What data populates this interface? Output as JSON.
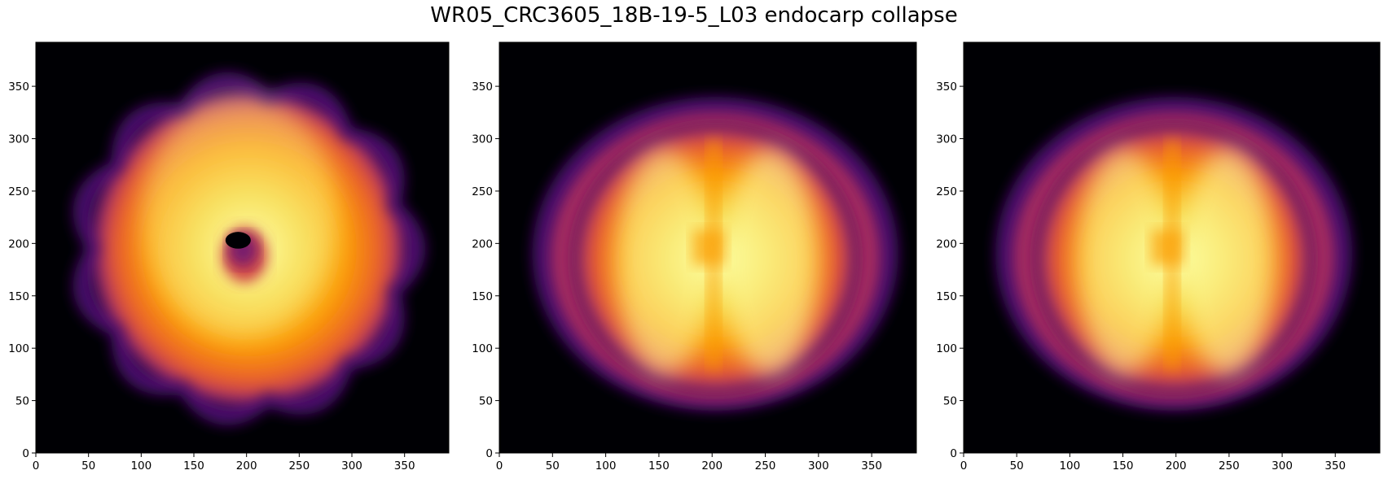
{
  "figure": {
    "title": "WR05_CRC3605_18B-19-5_L03 endocarp collapse",
    "colormap": "inferno",
    "background": "#000004"
  },
  "chart_data": [
    {
      "type": "heatmap",
      "view": "top",
      "xlim": [
        0,
        392
      ],
      "ylim": [
        0,
        392
      ],
      "xticks": [
        0,
        50,
        100,
        150,
        200,
        250,
        300,
        350
      ],
      "yticks": [
        0,
        50,
        100,
        150,
        200,
        250,
        300,
        350
      ],
      "center": [
        200,
        195
      ],
      "lobes": 11,
      "radius": 165,
      "lobe_depth": 12,
      "hole": {
        "x": 192,
        "y": 203,
        "rx": 12,
        "ry": 5
      }
    },
    {
      "type": "heatmap",
      "view": "side",
      "xlim": [
        0,
        392
      ],
      "ylim": [
        0,
        392
      ],
      "xticks": [
        0,
        50,
        100,
        150,
        200,
        250,
        300,
        350
      ],
      "yticks": [
        0,
        50,
        100,
        150,
        200,
        250,
        300,
        350
      ],
      "center": [
        203,
        190
      ],
      "rx": 172,
      "ry": 150
    },
    {
      "type": "heatmap",
      "view": "side",
      "xlim": [
        0,
        392
      ],
      "ylim": [
        0,
        392
      ],
      "xticks": [
        0,
        50,
        100,
        150,
        200,
        250,
        300,
        350
      ],
      "yticks": [
        0,
        50,
        100,
        150,
        200,
        250,
        300,
        350
      ],
      "center": [
        198,
        190
      ],
      "rx": 168,
      "ry": 150
    }
  ]
}
